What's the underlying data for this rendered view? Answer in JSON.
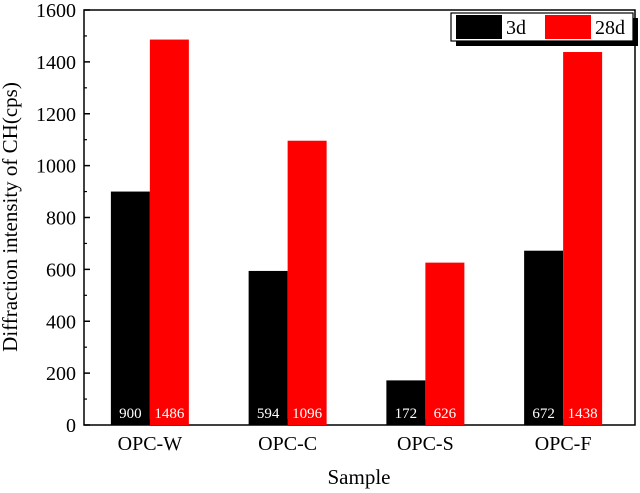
{
  "chart_data": {
    "type": "bar",
    "title": "",
    "xlabel": "Sample",
    "ylabel": "Diffraction intensity of CH(cps)",
    "ylim": [
      0,
      1600
    ],
    "yticks": [
      0,
      200,
      400,
      600,
      800,
      1000,
      1200,
      1400,
      1600
    ],
    "categories": [
      "OPC-W",
      "OPC-C",
      "OPC-S",
      "OPC-F"
    ],
    "series": [
      {
        "name": "3d",
        "color": "#000000",
        "values": [
          900,
          594,
          172,
          672
        ]
      },
      {
        "name": "28d",
        "color": "#ff0000",
        "values": [
          1486,
          1096,
          626,
          1438
        ]
      }
    ],
    "data_labels": {
      "3d": [
        "900",
        "594",
        "172",
        "672"
      ],
      "28d": [
        "1486",
        "1096",
        "626",
        "1438"
      ]
    },
    "legend": {
      "placement": "top-right",
      "entries": [
        "3d",
        "28d"
      ]
    },
    "grid": false
  }
}
